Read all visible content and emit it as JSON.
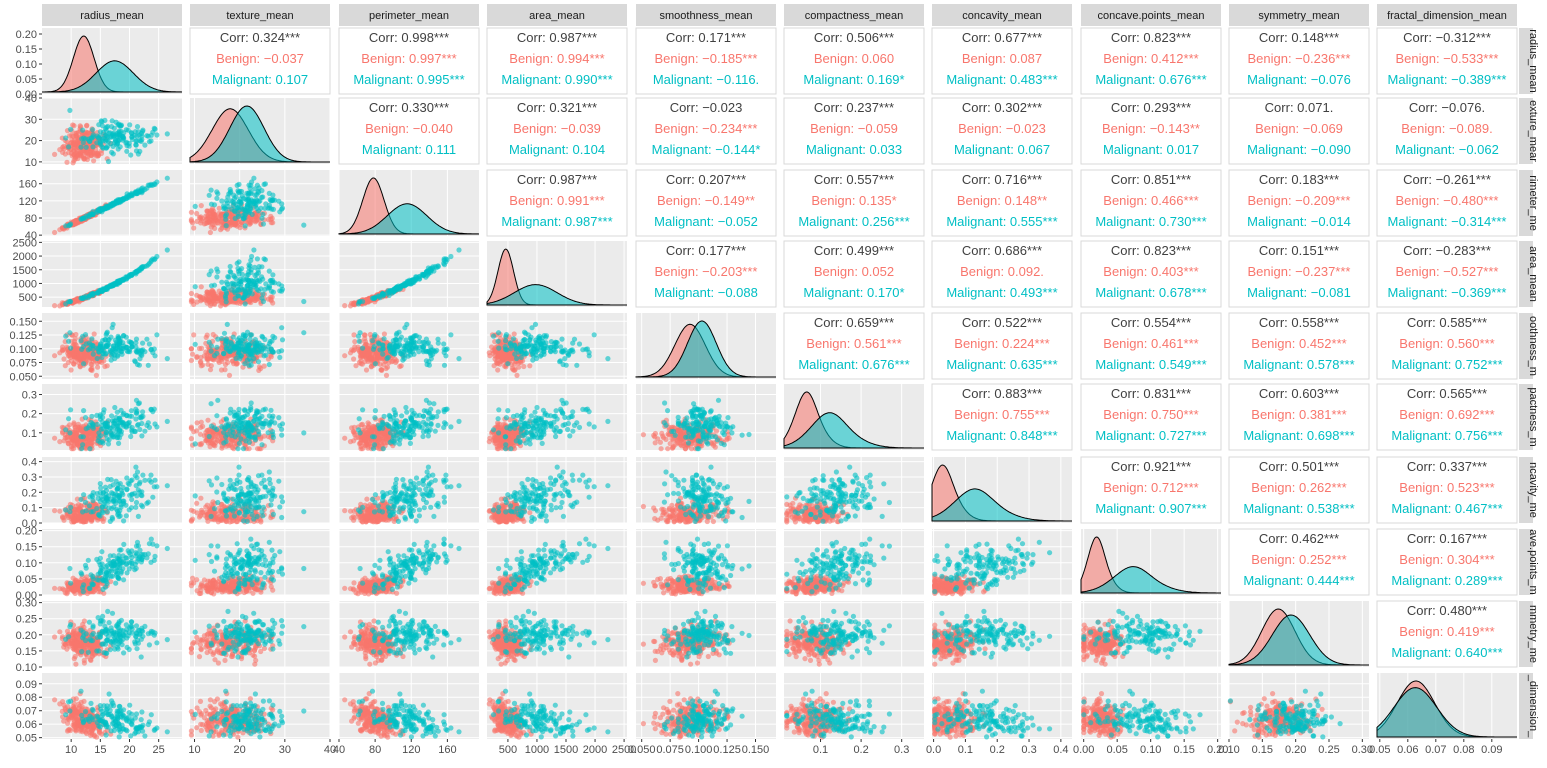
{
  "chart_data": {
    "type": "scatter",
    "variables": [
      "radius_mean",
      "texture_mean",
      "perimeter_mean",
      "area_mean",
      "smoothness_mean",
      "compactness_mean",
      "concavity_mean",
      "concave.points_mean",
      "symmetry_mean",
      "fractal_dimension_mean"
    ],
    "right_strip_labels": [
      "radius_mean",
      "exture_mear",
      "rimeter_me",
      "area_mean",
      "oothness_m",
      "pactness_m",
      "ncavity_me",
      "ave.points_m",
      "mmetry_me",
      "_dimension_"
    ],
    "groups": [
      {
        "name": "Benign",
        "color": "#F8766D"
      },
      {
        "name": "Malignant",
        "color": "#00BFC4"
      }
    ],
    "overall_color": "#404040",
    "corr_prefix": "Corr: ",
    "x_ticks": [
      {
        "labels": [
          "10",
          "15",
          "20",
          "25"
        ],
        "range": [
          5,
          29
        ]
      },
      {
        "labels": [
          "10",
          "20",
          "30",
          "40"
        ],
        "range": [
          9,
          40
        ]
      },
      {
        "labels": [
          "40",
          "80",
          "120",
          "160"
        ],
        "range": [
          40,
          195
        ]
      },
      {
        "labels": [
          "500",
          "1000",
          "1500",
          "2000",
          "2500"
        ],
        "range": [
          140,
          2550
        ]
      },
      {
        "labels": [
          "0.050",
          "0.075",
          "0.100",
          "0.125",
          "0.150"
        ],
        "range": [
          0.045,
          0.168
        ]
      },
      {
        "labels": [
          "0.1",
          "0.2",
          "0.3"
        ],
        "range": [
          0.01,
          0.355
        ]
      },
      {
        "labels": [
          "0.0",
          "0.1",
          "0.2",
          "0.3",
          "0.4"
        ],
        "range": [
          -0.005,
          0.435
        ]
      },
      {
        "labels": [
          "0.00",
          "0.05",
          "0.10",
          "0.15",
          "0.20"
        ],
        "range": [
          -0.004,
          0.205
        ]
      },
      {
        "labels": [
          "0.10",
          "0.15",
          "0.20",
          "0.25",
          "0.30"
        ],
        "range": [
          0.1,
          0.31
        ]
      },
      {
        "labels": [
          "0.05",
          "0.06",
          "0.07",
          "0.08",
          "0.09"
        ],
        "range": [
          0.049,
          0.099
        ]
      }
    ],
    "x_tick_values": [
      [
        10,
        15,
        20,
        25
      ],
      [
        10,
        20,
        30,
        40
      ],
      [
        40,
        80,
        120,
        160
      ],
      [
        500,
        1000,
        1500,
        2000,
        2500
      ],
      [
        0.05,
        0.075,
        0.1,
        0.125,
        0.15
      ],
      [
        0.1,
        0.2,
        0.3
      ],
      [
        0,
        0.1,
        0.2,
        0.3,
        0.4
      ],
      [
        0,
        0.05,
        0.1,
        0.15,
        0.2
      ],
      [
        0.1,
        0.15,
        0.2,
        0.25,
        0.3
      ],
      [
        0.05,
        0.06,
        0.07,
        0.08,
        0.09
      ]
    ],
    "y_ticks": [
      {
        "labels": [
          "0.00",
          "0.05",
          "0.10",
          "0.15",
          "0.20"
        ],
        "values": [
          0,
          0.05,
          0.1,
          0.15,
          0.2
        ],
        "range": [
          0,
          0.22
        ]
      },
      {
        "labels": [
          "10",
          "20",
          "30",
          "40"
        ],
        "values": [
          10,
          20,
          30,
          40
        ],
        "range": [
          9,
          40
        ]
      },
      {
        "labels": [
          "40",
          "80",
          "120",
          "160"
        ],
        "values": [
          40,
          80,
          120,
          160
        ],
        "range": [
          38,
          192
        ]
      },
      {
        "labels": [
          "500",
          "1000",
          "1500",
          "2000",
          "2500"
        ],
        "values": [
          500,
          1000,
          1500,
          2000,
          2500
        ],
        "range": [
          140,
          2550
        ]
      },
      {
        "labels": [
          "0.050",
          "0.075",
          "0.100",
          "0.125",
          "0.150"
        ],
        "values": [
          0.05,
          0.075,
          0.1,
          0.125,
          0.15
        ],
        "range": [
          0.045,
          0.165
        ]
      },
      {
        "labels": [
          "0.1",
          "0.2",
          "0.3"
        ],
        "values": [
          0.1,
          0.2,
          0.3
        ],
        "range": [
          0.01,
          0.355
        ]
      },
      {
        "labels": [
          "0.0",
          "0.1",
          "0.2",
          "0.3",
          "0.4"
        ],
        "values": [
          0,
          0.1,
          0.2,
          0.3,
          0.4
        ],
        "range": [
          0,
          0.43
        ]
      },
      {
        "labels": [
          "0.00",
          "0.05",
          "0.10",
          "0.15",
          "0.20"
        ],
        "values": [
          0,
          0.05,
          0.1,
          0.15,
          0.2
        ],
        "range": [
          0,
          0.205
        ]
      },
      {
        "labels": [
          "0.10",
          "0.15",
          "0.20",
          "0.25",
          "0.30"
        ],
        "values": [
          0.1,
          0.15,
          0.2,
          0.25,
          0.3
        ],
        "range": [
          0.1,
          0.305
        ]
      },
      {
        "labels": [
          "0.05",
          "0.06",
          "0.07",
          "0.08",
          "0.09"
        ],
        "values": [
          0.05,
          0.06,
          0.07,
          0.08,
          0.09
        ],
        "range": [
          0.049,
          0.098
        ]
      }
    ],
    "group_stats": [
      {
        "Benign": {
          "mean": 12.15,
          "sd": 1.78
        },
        "Malignant": {
          "mean": 17.46,
          "sd": 3.2
        }
      },
      {
        "Benign": {
          "mean": 17.9,
          "sd": 4.0
        },
        "Malignant": {
          "mean": 21.6,
          "sd": 3.8
        }
      },
      {
        "Benign": {
          "mean": 78.1,
          "sd": 11.8
        },
        "Malignant": {
          "mean": 115.4,
          "sd": 21.9
        }
      },
      {
        "Benign": {
          "mean": 463,
          "sd": 134
        },
        "Malignant": {
          "mean": 978,
          "sd": 368
        }
      },
      {
        "Benign": {
          "mean": 0.0925,
          "sd": 0.0134
        },
        "Malignant": {
          "mean": 0.1029,
          "sd": 0.0126
        }
      },
      {
        "Benign": {
          "mean": 0.08,
          "sd": 0.034
        },
        "Malignant": {
          "mean": 0.145,
          "sd": 0.054
        }
      },
      {
        "Benign": {
          "mean": 0.046,
          "sd": 0.043
        },
        "Malignant": {
          "mean": 0.161,
          "sd": 0.075
        }
      },
      {
        "Benign": {
          "mean": 0.026,
          "sd": 0.016
        },
        "Malignant": {
          "mean": 0.088,
          "sd": 0.034
        }
      },
      {
        "Benign": {
          "mean": 0.174,
          "sd": 0.025
        },
        "Malignant": {
          "mean": 0.193,
          "sd": 0.028
        }
      },
      {
        "Benign": {
          "mean": 0.0629,
          "sd": 0.0067
        },
        "Malignant": {
          "mean": 0.0627,
          "sd": 0.0076
        }
      }
    ],
    "correlations": [
      {
        "row": 0,
        "col": 1,
        "Corr": "0.324***",
        "Benign": "−0.037",
        "Malignant": "0.107"
      },
      {
        "row": 0,
        "col": 2,
        "Corr": "0.998***",
        "Benign": "0.997***",
        "Malignant": "0.995***"
      },
      {
        "row": 0,
        "col": 3,
        "Corr": "0.987***",
        "Benign": "0.994***",
        "Malignant": "0.990***"
      },
      {
        "row": 0,
        "col": 4,
        "Corr": "0.171***",
        "Benign": "−0.185***",
        "Malignant": "−0.116."
      },
      {
        "row": 0,
        "col": 5,
        "Corr": "0.506***",
        "Benign": "0.060",
        "Malignant": "0.169*"
      },
      {
        "row": 0,
        "col": 6,
        "Corr": "0.677***",
        "Benign": "0.087",
        "Malignant": "0.483***"
      },
      {
        "row": 0,
        "col": 7,
        "Corr": "0.823***",
        "Benign": "0.412***",
        "Malignant": "0.676***"
      },
      {
        "row": 0,
        "col": 8,
        "Corr": "0.148***",
        "Benign": "−0.236***",
        "Malignant": "−0.076"
      },
      {
        "row": 0,
        "col": 9,
        "Corr": "−0.312***",
        "Benign": "−0.533***",
        "Malignant": "−0.389***"
      },
      {
        "row": 1,
        "col": 2,
        "Corr": "0.330***",
        "Benign": "−0.040",
        "Malignant": "0.111"
      },
      {
        "row": 1,
        "col": 3,
        "Corr": "0.321***",
        "Benign": "−0.039",
        "Malignant": "0.104"
      },
      {
        "row": 1,
        "col": 4,
        "Corr": "−0.023",
        "Benign": "−0.234***",
        "Malignant": "−0.144*"
      },
      {
        "row": 1,
        "col": 5,
        "Corr": "0.237***",
        "Benign": "−0.059",
        "Malignant": "0.033"
      },
      {
        "row": 1,
        "col": 6,
        "Corr": "0.302***",
        "Benign": "−0.023",
        "Malignant": "0.067"
      },
      {
        "row": 1,
        "col": 7,
        "Corr": "0.293***",
        "Benign": "−0.143**",
        "Malignant": "0.017"
      },
      {
        "row": 1,
        "col": 8,
        "Corr": "0.071.",
        "Benign": "−0.069",
        "Malignant": "−0.090"
      },
      {
        "row": 1,
        "col": 9,
        "Corr": "−0.076.",
        "Benign": "−0.089.",
        "Malignant": "−0.062"
      },
      {
        "row": 2,
        "col": 3,
        "Corr": "0.987***",
        "Benign": "0.991***",
        "Malignant": "0.987***"
      },
      {
        "row": 2,
        "col": 4,
        "Corr": "0.207***",
        "Benign": "−0.149**",
        "Malignant": "−0.052"
      },
      {
        "row": 2,
        "col": 5,
        "Corr": "0.557***",
        "Benign": "0.135*",
        "Malignant": "0.256***"
      },
      {
        "row": 2,
        "col": 6,
        "Corr": "0.716***",
        "Benign": "0.148**",
        "Malignant": "0.555***"
      },
      {
        "row": 2,
        "col": 7,
        "Corr": "0.851***",
        "Benign": "0.466***",
        "Malignant": "0.730***"
      },
      {
        "row": 2,
        "col": 8,
        "Corr": "0.183***",
        "Benign": "−0.209***",
        "Malignant": "−0.014"
      },
      {
        "row": 2,
        "col": 9,
        "Corr": "−0.261***",
        "Benign": "−0.480***",
        "Malignant": "−0.314***"
      },
      {
        "row": 3,
        "col": 4,
        "Corr": "0.177***",
        "Benign": "−0.203***",
        "Malignant": "−0.088"
      },
      {
        "row": 3,
        "col": 5,
        "Corr": "0.499***",
        "Benign": "0.052",
        "Malignant": "0.170*"
      },
      {
        "row": 3,
        "col": 6,
        "Corr": "0.686***",
        "Benign": "0.092.",
        "Malignant": "0.493***"
      },
      {
        "row": 3,
        "col": 7,
        "Corr": "0.823***",
        "Benign": "0.403***",
        "Malignant": "0.678***"
      },
      {
        "row": 3,
        "col": 8,
        "Corr": "0.151***",
        "Benign": "−0.237***",
        "Malignant": "−0.081"
      },
      {
        "row": 3,
        "col": 9,
        "Corr": "−0.283***",
        "Benign": "−0.527***",
        "Malignant": "−0.369***"
      },
      {
        "row": 4,
        "col": 5,
        "Corr": "0.659***",
        "Benign": "0.561***",
        "Malignant": "0.676***"
      },
      {
        "row": 4,
        "col": 6,
        "Corr": "0.522***",
        "Benign": "0.224***",
        "Malignant": "0.635***"
      },
      {
        "row": 4,
        "col": 7,
        "Corr": "0.554***",
        "Benign": "0.461***",
        "Malignant": "0.549***"
      },
      {
        "row": 4,
        "col": 8,
        "Corr": "0.558***",
        "Benign": "0.452***",
        "Malignant": "0.578***"
      },
      {
        "row": 4,
        "col": 9,
        "Corr": "0.585***",
        "Benign": "0.560***",
        "Malignant": "0.752***"
      },
      {
        "row": 5,
        "col": 6,
        "Corr": "0.883***",
        "Benign": "0.755***",
        "Malignant": "0.848***"
      },
      {
        "row": 5,
        "col": 7,
        "Corr": "0.831***",
        "Benign": "0.750***",
        "Malignant": "0.727***"
      },
      {
        "row": 5,
        "col": 8,
        "Corr": "0.603***",
        "Benign": "0.381***",
        "Malignant": "0.698***"
      },
      {
        "row": 5,
        "col": 9,
        "Corr": "0.565***",
        "Benign": "0.692***",
        "Malignant": "0.756***"
      },
      {
        "row": 6,
        "col": 7,
        "Corr": "0.921***",
        "Benign": "0.712***",
        "Malignant": "0.907***"
      },
      {
        "row": 6,
        "col": 8,
        "Corr": "0.501***",
        "Benign": "0.262***",
        "Malignant": "0.538***"
      },
      {
        "row": 6,
        "col": 9,
        "Corr": "0.337***",
        "Benign": "0.523***",
        "Malignant": "0.467***"
      },
      {
        "row": 7,
        "col": 8,
        "Corr": "0.462***",
        "Benign": "0.252***",
        "Malignant": "0.444***"
      },
      {
        "row": 7,
        "col": 9,
        "Corr": "0.167***",
        "Benign": "0.304***",
        "Malignant": "0.289***"
      },
      {
        "row": 8,
        "col": 9,
        "Corr": "0.480***",
        "Benign": "0.419***",
        "Malignant": "0.640***"
      }
    ],
    "grid": true,
    "legend": "none"
  }
}
